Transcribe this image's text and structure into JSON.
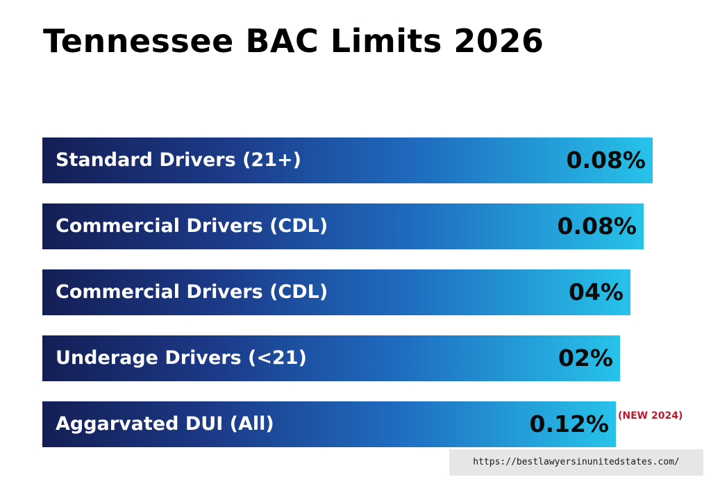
{
  "chart_data": {
    "type": "bar",
    "orientation": "horizontal",
    "title": "Tennessee BAC Limits 2026",
    "categories": [
      "Standard Drivers (21+)",
      "Commercial Drivers (CDL)",
      "Commercial Drivers (CDL)",
      "Underage Drivers (<21)",
      "Aggarvated DUI (All)"
    ],
    "value_labels": [
      "0.08%",
      "0.08%",
      "04%",
      "02%",
      "0.12%"
    ],
    "annotations": [
      {
        "category_index": 4,
        "text": "(NEW 2024)",
        "color": "#c0182b"
      }
    ],
    "gradient_colors": [
      "#141e55",
      "#1c3a88",
      "#1f6cc0",
      "#27c3ea"
    ],
    "grid": false,
    "legend": "none"
  },
  "footer": {
    "url": "https://bestlawyersinunitedstates.com/"
  }
}
